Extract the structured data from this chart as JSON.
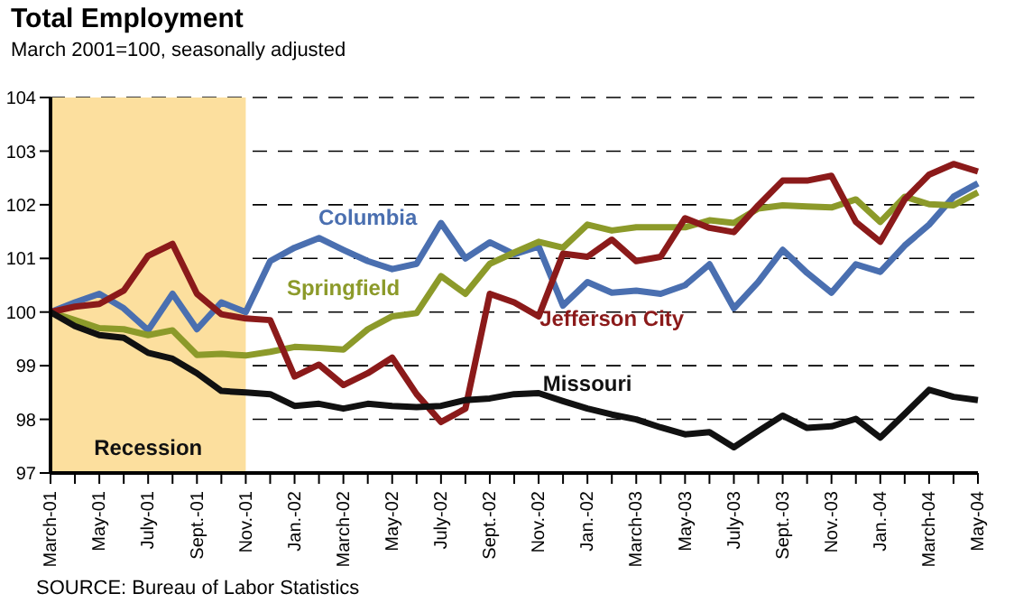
{
  "chart_data": {
    "type": "line",
    "title": "Total Employment",
    "subtitle": "March 2001=100, seasonally adjusted",
    "categories": [
      "March-01",
      null,
      "May-01",
      null,
      "July-01",
      null,
      "Sept.-01",
      null,
      "Nov.-01",
      null,
      "Jan.-02",
      null,
      "March-02",
      null,
      "May-02",
      null,
      "July-02",
      null,
      "Sept.-02",
      null,
      "Nov.-02",
      null,
      "Jan.-02",
      null,
      "March-03",
      null,
      "May-03",
      null,
      "July-03",
      null,
      "Sept.-03",
      null,
      "Nov.-03",
      null,
      "Jan.-04",
      null,
      "March-04",
      null,
      "May-04"
    ],
    "series": [
      {
        "name": "Columbia",
        "color": "#4a6fb0",
        "values": [
          100.0,
          100.18,
          100.34,
          100.07,
          99.66,
          100.34,
          99.68,
          100.18,
          100.0,
          100.95,
          101.2,
          101.38,
          101.16,
          100.95,
          100.8,
          100.9,
          101.66,
          101.0,
          101.3,
          101.08,
          101.22,
          100.12,
          100.56,
          100.36,
          100.4,
          100.34,
          100.5,
          100.89,
          100.07,
          100.56,
          101.16,
          100.73,
          100.36,
          100.89,
          100.75,
          101.24,
          101.63,
          102.15,
          102.4
        ]
      },
      {
        "name": "Springfield",
        "color": "#8c9a2a",
        "values": [
          100.0,
          99.85,
          99.7,
          99.68,
          99.57,
          99.66,
          99.2,
          99.22,
          99.19,
          99.26,
          99.35,
          99.33,
          99.3,
          99.68,
          99.92,
          99.98,
          100.67,
          100.34,
          100.9,
          101.11,
          101.31,
          101.2,
          101.63,
          101.52,
          101.58,
          101.58,
          101.58,
          101.71,
          101.66,
          101.93,
          101.99,
          101.97,
          101.95,
          102.1,
          101.68,
          102.15,
          102.01,
          101.99,
          102.23
        ]
      },
      {
        "name": "Jefferson City",
        "color": "#8b1a1a",
        "values": [
          100.0,
          100.1,
          100.15,
          100.4,
          101.05,
          101.27,
          100.34,
          99.96,
          99.88,
          99.85,
          98.8,
          99.02,
          98.64,
          98.86,
          99.15,
          98.47,
          97.95,
          98.2,
          100.34,
          100.18,
          99.92,
          101.09,
          101.03,
          101.35,
          100.95,
          101.03,
          101.75,
          101.57,
          101.49,
          101.99,
          102.45,
          102.45,
          102.54,
          101.68,
          101.31,
          102.1,
          102.56,
          102.76,
          102.62
        ]
      },
      {
        "name": "Missouri",
        "color": "#111111",
        "values": [
          100.0,
          99.74,
          99.57,
          99.52,
          99.24,
          99.13,
          98.86,
          98.53,
          98.5,
          98.47,
          98.25,
          98.29,
          98.2,
          98.29,
          98.25,
          98.23,
          98.25,
          98.36,
          98.39,
          98.47,
          98.49,
          98.34,
          98.2,
          98.09,
          98.0,
          97.85,
          97.72,
          97.76,
          97.48,
          97.78,
          98.07,
          97.84,
          97.87,
          98.01,
          97.66,
          98.1,
          98.55,
          98.42,
          98.36
        ]
      }
    ],
    "ylim": [
      97,
      104
    ],
    "yticks": [
      97,
      98,
      99,
      100,
      101,
      102,
      103,
      104
    ],
    "grid": "y",
    "marker": "none",
    "line_style": "solid",
    "bands": [
      {
        "axis": "x",
        "from": "March-01",
        "to": "Nov.-01",
        "label": "Recession",
        "color": "#fcdf9e"
      }
    ],
    "annotations": [
      "SOURCE: Bureau of Labor Statistics"
    ]
  }
}
